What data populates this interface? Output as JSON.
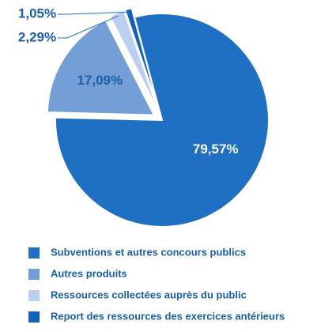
{
  "chart_data": {
    "type": "pie",
    "categories": [
      "Subventions et autres concours publics",
      "Autres produits",
      "Ressources collectées auprès du public",
      "Report des ressources des exercices antérieurs"
    ],
    "values": [
      79.57,
      17.09,
      2.29,
      1.05
    ],
    "value_labels": [
      "79,57%",
      "17,09%",
      "2,29%",
      "1,05%"
    ],
    "colors": [
      "#1f6fc2",
      "#739fd6",
      "#bccff0",
      "#1462b5"
    ]
  }
}
